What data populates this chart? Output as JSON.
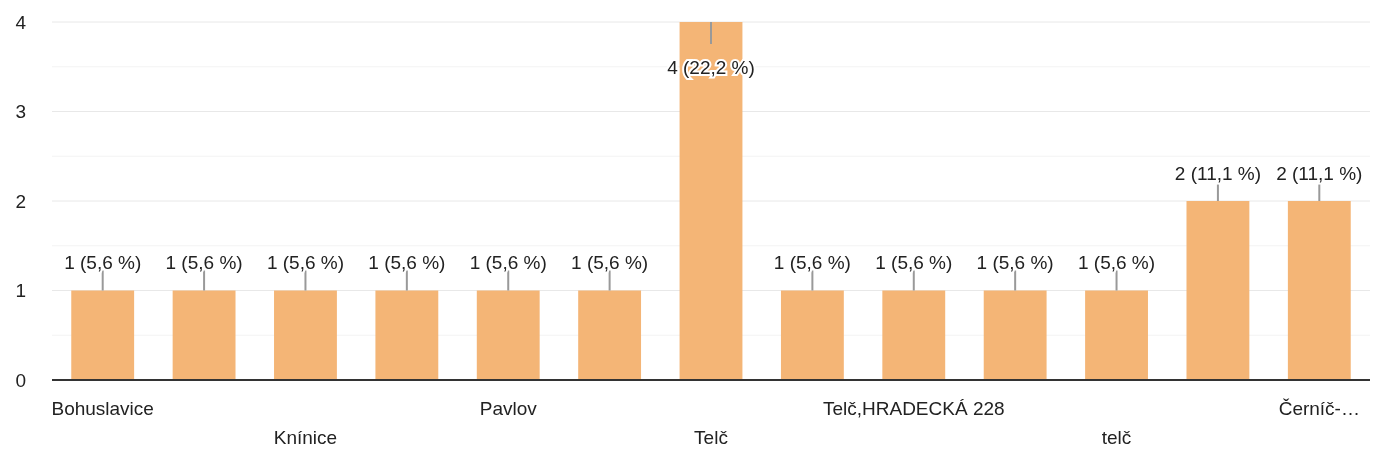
{
  "chart_data": {
    "type": "bar",
    "categories": [
      "Bohuslavice",
      null,
      "Knínice",
      null,
      "Pavlov",
      null,
      "Telč",
      null,
      "Telč,HRADECKÁ 228",
      null,
      "telč",
      null,
      "Černíč-…"
    ],
    "values": [
      1,
      1,
      1,
      1,
      1,
      1,
      4,
      1,
      1,
      1,
      1,
      2,
      2
    ],
    "value_labels": [
      "1 (5,6 %)",
      "1 (5,6 %)",
      "1 (5,6 %)",
      "1 (5,6 %)",
      "1 (5,6 %)",
      "1 (5,6 %)",
      "4 (22,2 %)",
      "1 (5,6 %)",
      "1 (5,6 %)",
      "1 (5,6 %)",
      "1 (5,6 %)",
      "2 (11,1 %)",
      "2 (11,1 %)"
    ],
    "color": "#f4b576",
    "ylim": [
      0,
      4
    ],
    "yticks": [
      0,
      {
        "value": 0.5,
        "label": null
      },
      1,
      {
        "value": 1.5,
        "label": null
      },
      2,
      {
        "value": 2.5,
        "label": null
      },
      3,
      {
        "value": 3.5,
        "label": null
      },
      4
    ],
    "grid": "y"
  }
}
